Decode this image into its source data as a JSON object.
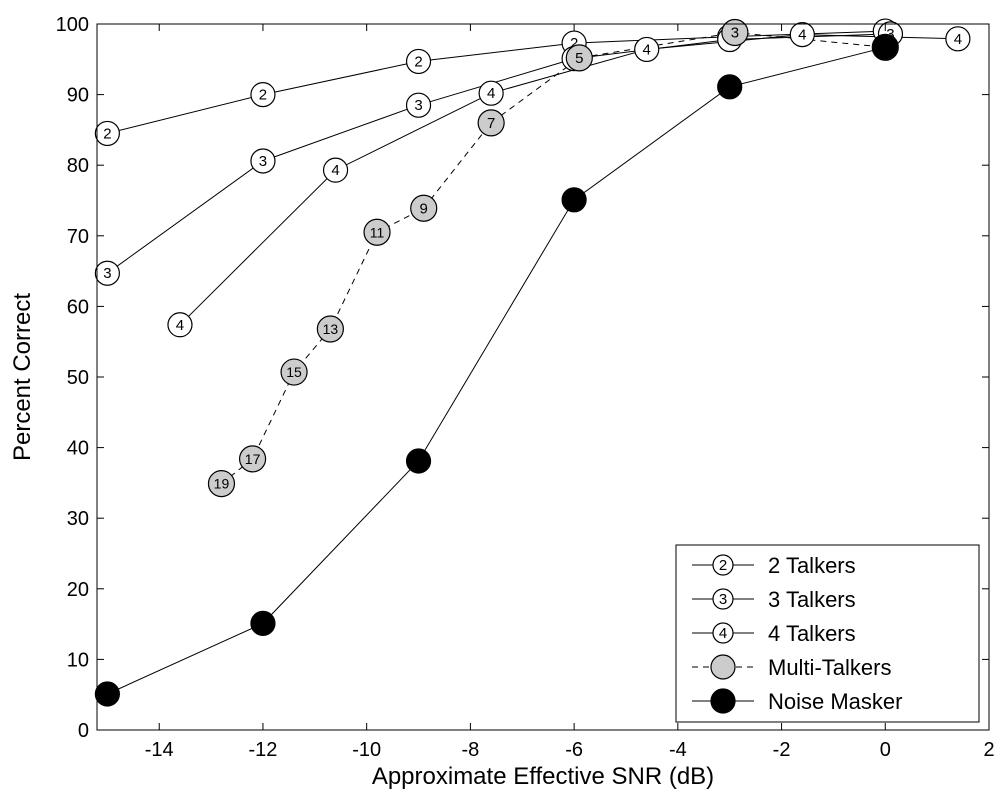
{
  "chart_data": {
    "type": "line",
    "title": "",
    "xlabel": "Approximate Effective SNR (dB)",
    "ylabel": "Percent Correct",
    "xlim": [
      -15.2,
      2
    ],
    "ylim": [
      0,
      100
    ],
    "xticks": [
      -14,
      -12,
      -10,
      -8,
      -6,
      -4,
      -2,
      0,
      2
    ],
    "yticks": [
      0,
      10,
      20,
      30,
      40,
      50,
      60,
      70,
      80,
      90,
      100
    ],
    "grid": false,
    "legend_position": "bottom-right",
    "series": [
      {
        "name": "2 Talkers",
        "marker": "open-circle-label",
        "line": "solid",
        "points": [
          {
            "x": -15,
            "y": 84.5,
            "label": "2"
          },
          {
            "x": -12,
            "y": 90,
            "label": "2"
          },
          {
            "x": -9,
            "y": 94.7,
            "label": "2"
          },
          {
            "x": -6,
            "y": 97.3,
            "label": "2"
          },
          {
            "x": -3,
            "y": 98.2,
            "label": "2"
          },
          {
            "x": 0,
            "y": 99,
            "label": "2"
          }
        ]
      },
      {
        "name": "3 Talkers",
        "marker": "open-circle-label",
        "line": "solid",
        "points": [
          {
            "x": -15,
            "y": 64.7,
            "label": "3"
          },
          {
            "x": -12,
            "y": 80.6,
            "label": "3"
          },
          {
            "x": -9,
            "y": 88.5,
            "label": "3"
          },
          {
            "x": -6,
            "y": 95.1,
            "label": "3"
          },
          {
            "x": -3,
            "y": 97.8,
            "label": "3"
          },
          {
            "x": 0.1,
            "y": 98.6,
            "label": "3"
          }
        ]
      },
      {
        "name": "4 Talkers",
        "marker": "open-circle-label",
        "line": "solid",
        "points": [
          {
            "x": -13.6,
            "y": 57.4,
            "label": "4"
          },
          {
            "x": -10.6,
            "y": 79.3,
            "label": "4"
          },
          {
            "x": -7.6,
            "y": 90.2,
            "label": "4"
          },
          {
            "x": -4.6,
            "y": 96.4,
            "label": "4"
          },
          {
            "x": -1.6,
            "y": 98.5,
            "label": "4"
          },
          {
            "x": 1.4,
            "y": 97.9,
            "label": "4"
          }
        ]
      },
      {
        "name": "Multi-Talkers",
        "marker": "gray-circle-label",
        "line": "dashed",
        "points": [
          {
            "x": -12.8,
            "y": 34.9,
            "label": "19"
          },
          {
            "x": -12.2,
            "y": 38.4,
            "label": "17"
          },
          {
            "x": -11.4,
            "y": 50.7,
            "label": "15"
          },
          {
            "x": -10.7,
            "y": 56.8,
            "label": "13"
          },
          {
            "x": -9.8,
            "y": 70.5,
            "label": "11"
          },
          {
            "x": -8.9,
            "y": 73.9,
            "label": "9"
          },
          {
            "x": -7.6,
            "y": 86,
            "label": "7"
          },
          {
            "x": -5.9,
            "y": 95.2,
            "label": "5"
          },
          {
            "x": -2.9,
            "y": 98.8,
            "label": "3"
          },
          {
            "x": 0,
            "y": 96.7,
            "label": "2"
          }
        ]
      },
      {
        "name": "Noise Masker",
        "marker": "black-circle",
        "line": "solid",
        "points": [
          {
            "x": -15,
            "y": 5.1
          },
          {
            "x": -12,
            "y": 15.1
          },
          {
            "x": -9,
            "y": 38.1
          },
          {
            "x": -6,
            "y": 75.1
          },
          {
            "x": -3,
            "y": 91.1
          },
          {
            "x": 0,
            "y": 96.7
          }
        ]
      }
    ],
    "legend_entries": [
      {
        "text": "2 Talkers",
        "symbol_label": "2"
      },
      {
        "text": "3 Talkers",
        "symbol_label": "3"
      },
      {
        "text": "4 Talkers",
        "symbol_label": "4"
      },
      {
        "text": "Multi-Talkers",
        "symbol_label": ""
      },
      {
        "text": "Noise Masker",
        "symbol_label": ""
      }
    ]
  }
}
